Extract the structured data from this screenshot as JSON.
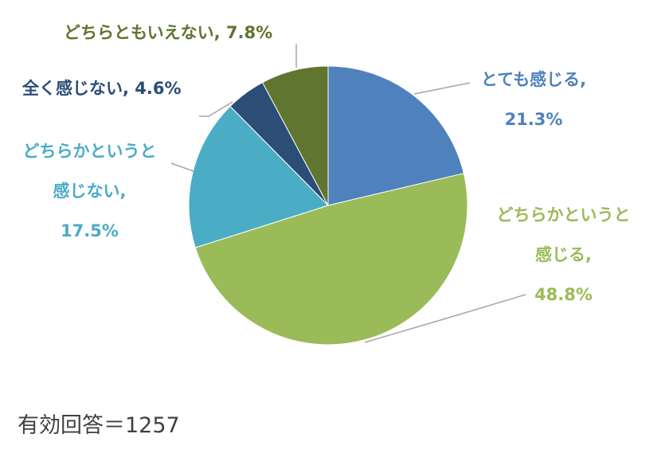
{
  "chart_data": {
    "type": "pie",
    "categories": [
      "とても感じる,",
      "どちらかというと感じる,",
      "どちらかというと感じない,",
      "全く感じない,",
      "どちらともいえない,"
    ],
    "values": [
      21.3,
      48.8,
      17.5,
      4.6,
      7.8
    ],
    "value_labels": [
      "21.3%",
      "48.8%",
      "17.5%",
      "4.6%",
      "7.8%"
    ],
    "colors": [
      "#4f81bd",
      "#9bbb59",
      "#4bacc6",
      "#2c4d75",
      "#5f7530"
    ],
    "note": "有効回答＝1257"
  }
}
